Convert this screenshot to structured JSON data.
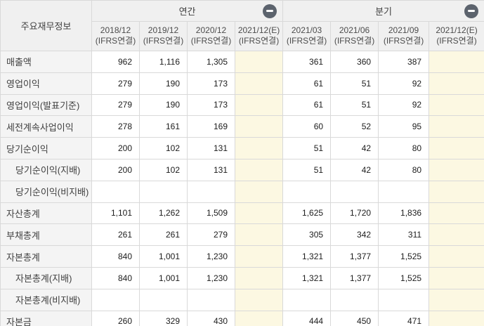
{
  "table": {
    "corner_label": "주요재무정보",
    "groups": [
      {
        "id": "annual",
        "label": "연간",
        "collapse_icon": "minus-circle"
      },
      {
        "id": "quarterly",
        "label": "분기",
        "collapse_icon": "minus-circle"
      }
    ],
    "columns": [
      {
        "period": "2018/12",
        "basis": "(IFRS연결)",
        "group": "annual",
        "estimate": false
      },
      {
        "period": "2019/12",
        "basis": "(IFRS연결)",
        "group": "annual",
        "estimate": false
      },
      {
        "period": "2020/12",
        "basis": "(IFRS연결)",
        "group": "annual",
        "estimate": false
      },
      {
        "period": "2021/12(E)",
        "basis": "(IFRS연결)",
        "group": "annual",
        "estimate": true
      },
      {
        "period": "2021/03",
        "basis": "(IFRS연결)",
        "group": "quarterly",
        "estimate": false
      },
      {
        "period": "2021/06",
        "basis": "(IFRS연결)",
        "group": "quarterly",
        "estimate": false
      },
      {
        "period": "2021/09",
        "basis": "(IFRS연결)",
        "group": "quarterly",
        "estimate": false
      },
      {
        "period": "2021/12(E)",
        "basis": "(IFRS연결)",
        "group": "quarterly",
        "estimate": true
      }
    ],
    "rows": [
      {
        "label": "매출액",
        "indent": false,
        "values": [
          "962",
          "1,116",
          "1,305",
          "",
          "361",
          "360",
          "387",
          ""
        ]
      },
      {
        "label": "영업이익",
        "indent": false,
        "values": [
          "279",
          "190",
          "173",
          "",
          "61",
          "51",
          "92",
          ""
        ]
      },
      {
        "label": "영업이익(발표기준)",
        "indent": false,
        "values": [
          "279",
          "190",
          "173",
          "",
          "61",
          "51",
          "92",
          ""
        ]
      },
      {
        "label": "세전계속사업이익",
        "indent": false,
        "values": [
          "278",
          "161",
          "169",
          "",
          "60",
          "52",
          "95",
          ""
        ]
      },
      {
        "label": "당기순이익",
        "indent": false,
        "values": [
          "200",
          "102",
          "131",
          "",
          "51",
          "42",
          "80",
          ""
        ]
      },
      {
        "label": "당기순이익(지배)",
        "indent": true,
        "values": [
          "200",
          "102",
          "131",
          "",
          "51",
          "42",
          "80",
          ""
        ]
      },
      {
        "label": "당기순이익(비지배)",
        "indent": true,
        "values": [
          "",
          "",
          "",
          "",
          "",
          "",
          "",
          ""
        ]
      },
      {
        "label": "자산총계",
        "indent": false,
        "values": [
          "1,101",
          "1,262",
          "1,509",
          "",
          "1,625",
          "1,720",
          "1,836",
          ""
        ]
      },
      {
        "label": "부채총계",
        "indent": false,
        "values": [
          "261",
          "261",
          "279",
          "",
          "305",
          "342",
          "311",
          ""
        ]
      },
      {
        "label": "자본총계",
        "indent": false,
        "values": [
          "840",
          "1,001",
          "1,230",
          "",
          "1,321",
          "1,377",
          "1,525",
          ""
        ]
      },
      {
        "label": "자본총계(지배)",
        "indent": true,
        "values": [
          "840",
          "1,001",
          "1,230",
          "",
          "1,321",
          "1,377",
          "1,525",
          ""
        ]
      },
      {
        "label": "자본총계(비지배)",
        "indent": true,
        "values": [
          "",
          "",
          "",
          "",
          "",
          "",
          "",
          ""
        ]
      },
      {
        "label": "자본금",
        "indent": false,
        "values": [
          "260",
          "329",
          "430",
          "",
          "444",
          "450",
          "471",
          ""
        ]
      }
    ],
    "colors": {
      "header_bg": "#f0f0f0",
      "row_label_bg": "#f4f4f4",
      "estimate_column_bg": "#fcf8e2",
      "border": "#d9d9d9",
      "collapse_icon_bg": "#5c636d",
      "value_text": "#1c1c1c",
      "header_text": "#4c4c4c"
    }
  }
}
